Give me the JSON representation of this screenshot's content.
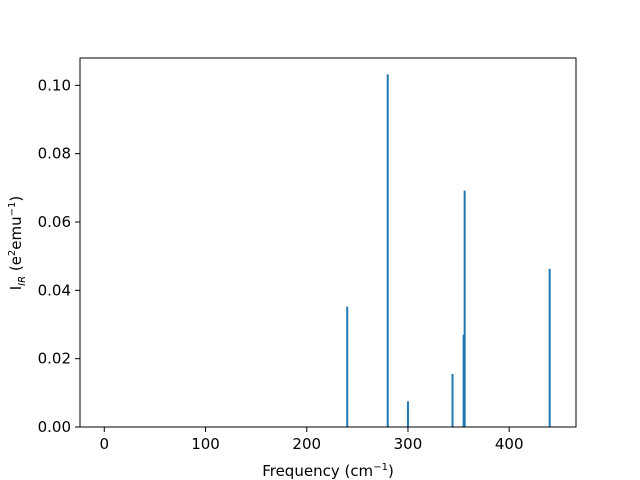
{
  "chart_data": {
    "type": "bar",
    "title": "",
    "xlabel": {
      "base": "Frequency (cm",
      "sup": "−1",
      "tail": ")"
    },
    "ylabel": {
      "base": "I",
      "sub": "IR",
      "mid": " (e",
      "sup1": "2",
      "mid2": "emu",
      "sup2": "−1",
      "tail": ")"
    },
    "xlim": [
      -24,
      466
    ],
    "ylim": [
      0,
      0.108
    ],
    "x_ticks": [
      0,
      100,
      200,
      300,
      400
    ],
    "x_tick_labels": [
      "0",
      "100",
      "200",
      "300",
      "400"
    ],
    "y_ticks": [
      0,
      0.02,
      0.04,
      0.06,
      0.08,
      0.1
    ],
    "y_tick_labels": [
      "0.00",
      "0.02",
      "0.04",
      "0.06",
      "0.08",
      "0.10"
    ],
    "bar_color": "#1f77b4",
    "grid": false,
    "series": [
      {
        "points": [
          {
            "x": 240,
            "y": 0.0352
          },
          {
            "x": 280,
            "y": 0.1032
          },
          {
            "x": 300,
            "y": 0.0075
          },
          {
            "x": 344,
            "y": 0.0155
          },
          {
            "x": 355,
            "y": 0.027
          },
          {
            "x": 356,
            "y": 0.0692
          },
          {
            "x": 440,
            "y": 0.0463
          }
        ]
      }
    ]
  }
}
